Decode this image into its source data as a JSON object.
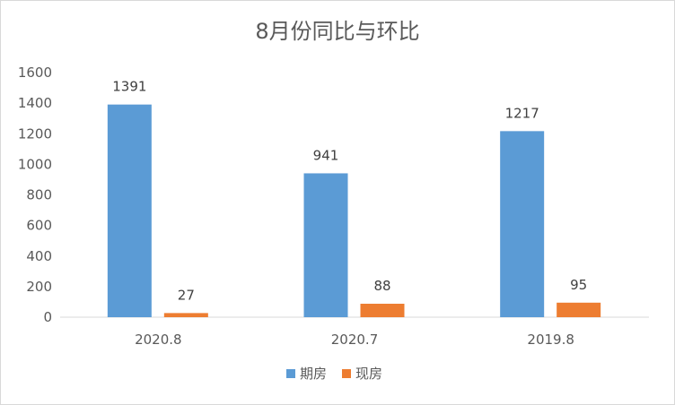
{
  "chart_data": {
    "type": "bar",
    "title": "8月份同比与环比",
    "categories": [
      "2020.8",
      "2020.7",
      "2019.8"
    ],
    "series": [
      {
        "name": "期房",
        "values": [
          1391,
          941,
          1217
        ],
        "color": "#5b9bd5"
      },
      {
        "name": "现房",
        "values": [
          27,
          88,
          95
        ],
        "color": "#ed7d31"
      }
    ],
    "ylim": [
      0,
      1600
    ],
    "yticks": [
      0,
      200,
      400,
      600,
      800,
      1000,
      1200,
      1400,
      1600
    ],
    "grid": false,
    "legend": "bottom",
    "xlabel": "",
    "ylabel": ""
  }
}
